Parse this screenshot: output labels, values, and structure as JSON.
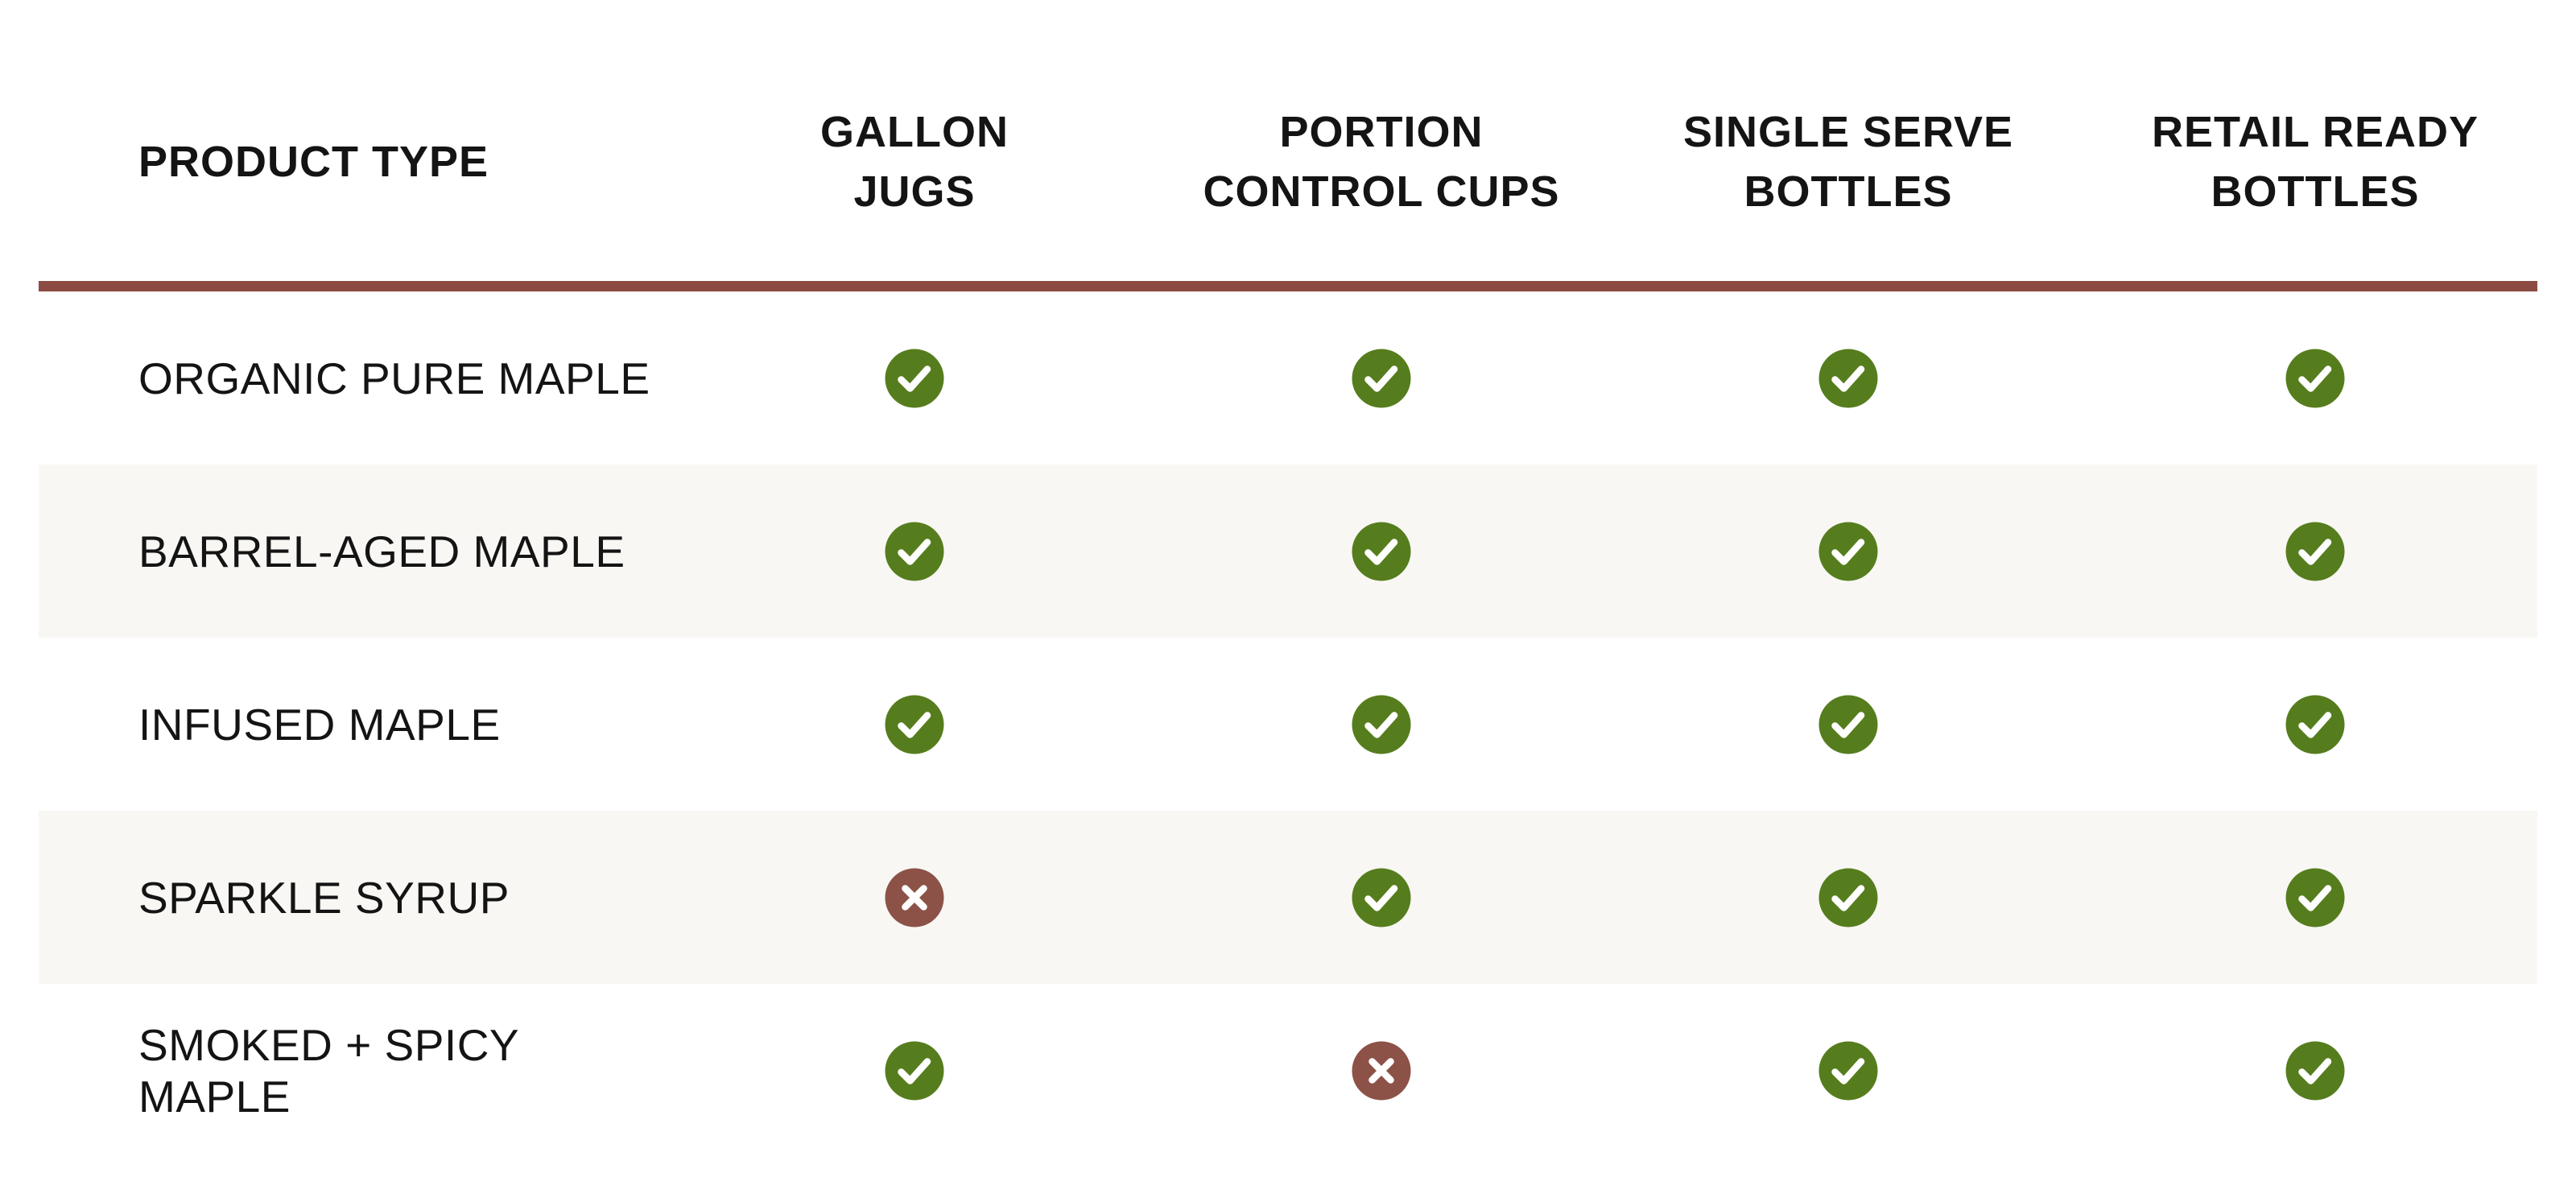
{
  "table": {
    "header": {
      "product_type": "PRODUCT TYPE",
      "columns": [
        {
          "line1": "GALLON",
          "line2": "JUGS"
        },
        {
          "line1": "PORTION",
          "line2": "CONTROL CUPS"
        },
        {
          "line1": "SINGLE SERVE",
          "line2": "BOTTLES"
        },
        {
          "line1": "RETAIL READY",
          "line2": "BOTTLES"
        }
      ]
    },
    "rows": [
      {
        "product": "ORGANIC PURE MAPLE",
        "availability": [
          "check",
          "check",
          "check",
          "check"
        ]
      },
      {
        "product": "BARREL-AGED MAPLE",
        "availability": [
          "check",
          "check",
          "check",
          "check"
        ]
      },
      {
        "product": "INFUSED MAPLE",
        "availability": [
          "check",
          "check",
          "check",
          "check"
        ]
      },
      {
        "product": "SPARKLE SYRUP",
        "availability": [
          "cross",
          "check",
          "check",
          "check"
        ]
      },
      {
        "product": "SMOKED + SPICY MAPLE",
        "availability": [
          "check",
          "cross",
          "check",
          "check"
        ]
      }
    ]
  },
  "icons": {
    "available": "check-icon",
    "unavailable": "cross-icon"
  },
  "colors": {
    "available_green": "#567d1d",
    "unavailable_red": "#8c5247",
    "divider_brown": "#8c4b42",
    "stripe_cream": "#f8f7f3",
    "text_black": "#141414",
    "background_white": "#ffffff"
  },
  "chart_data": {
    "type": "table",
    "title": "",
    "columns": [
      "PRODUCT TYPE",
      "GALLON JUGS",
      "PORTION CONTROL CUPS",
      "SINGLE SERVE BOTTLES",
      "RETAIL READY BOTTLES"
    ],
    "rows": [
      [
        "ORGANIC PURE MAPLE",
        true,
        true,
        true,
        true
      ],
      [
        "BARREL-AGED MAPLE",
        true,
        true,
        true,
        true
      ],
      [
        "INFUSED MAPLE",
        true,
        true,
        true,
        true
      ],
      [
        "SPARKLE SYRUP",
        false,
        true,
        true,
        true
      ],
      [
        "SMOKED + SPICY MAPLE",
        true,
        false,
        true,
        true
      ]
    ],
    "legend": {
      "check": "offered",
      "cross": "not offered"
    },
    "layout": {
      "striped_rows": [
        1,
        3
      ],
      "grid": "off",
      "header_divider": true
    }
  }
}
